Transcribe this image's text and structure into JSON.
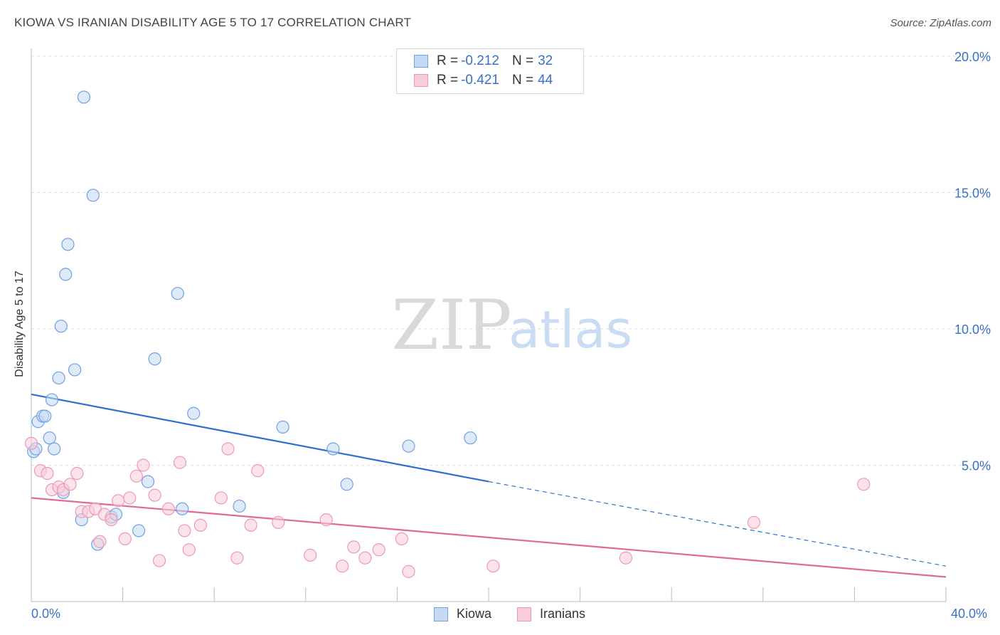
{
  "title": "KIOWA VS IRANIAN DISABILITY AGE 5 TO 17 CORRELATION CHART",
  "source": "Source: ZipAtlas.com",
  "watermark": {
    "zip": "ZIP",
    "atlas": "atlas"
  },
  "legend": {
    "series1": {
      "r_label": "R = ",
      "r_value": "-0.212",
      "n_label": "N = ",
      "n_value": "32"
    },
    "series2": {
      "r_label": "R = ",
      "r_value": "-0.421",
      "n_label": "N = ",
      "n_value": "44"
    }
  },
  "bottom_legend": {
    "kiowa": "Kiowa",
    "iranians": "Iranians"
  },
  "axis": {
    "x_min_label": "0.0%",
    "x_max_label": "40.0%"
  },
  "colors": {
    "kiowa": "#6fa1e3",
    "kiowa_fill": "#c5d9f4",
    "kiowa_line": "#2d6fcf",
    "iranians": "#ee99b4",
    "iranians_fill": "#f9ccd9",
    "iranians_line": "#e0699a"
  },
  "chart_data": {
    "type": "scatter",
    "title": "KIOWA VS IRANIAN DISABILITY AGE 5 TO 17 CORRELATION CHART",
    "xlabel": "",
    "ylabel": "Disability Age 5 to 17",
    "xlim": [
      0,
      40
    ],
    "ylim": [
      0,
      20
    ],
    "y_ticks": [
      {
        "value": 5,
        "label": "5.0%"
      },
      {
        "value": 10,
        "label": "10.0%"
      },
      {
        "value": 15,
        "label": "15.0%"
      },
      {
        "value": 20,
        "label": "20.0%"
      }
    ],
    "grid": "horizontal dashed",
    "legend_position": "top-center",
    "series": [
      {
        "name": "Kiowa",
        "r": -0.212,
        "n": 32,
        "trend": {
          "x": [
            0,
            20
          ],
          "y": [
            7.6,
            4.4
          ],
          "dashed_extension": {
            "x": [
              20,
              40
            ],
            "y": [
              4.4,
              1.3
            ]
          }
        },
        "points": [
          {
            "x": 0.1,
            "y": 5.5
          },
          {
            "x": 0.3,
            "y": 6.6
          },
          {
            "x": 0.5,
            "y": 6.8
          },
          {
            "x": 0.6,
            "y": 6.8
          },
          {
            "x": 0.8,
            "y": 6.0
          },
          {
            "x": 0.9,
            "y": 7.4
          },
          {
            "x": 1.0,
            "y": 5.6
          },
          {
            "x": 1.2,
            "y": 8.2
          },
          {
            "x": 1.3,
            "y": 10.1
          },
          {
            "x": 1.5,
            "y": 12.0
          },
          {
            "x": 1.6,
            "y": 13.1
          },
          {
            "x": 1.9,
            "y": 8.5
          },
          {
            "x": 2.3,
            "y": 18.5
          },
          {
            "x": 2.7,
            "y": 14.9
          },
          {
            "x": 1.4,
            "y": 4.0
          },
          {
            "x": 2.2,
            "y": 3.0
          },
          {
            "x": 2.9,
            "y": 2.1
          },
          {
            "x": 3.5,
            "y": 3.1
          },
          {
            "x": 3.7,
            "y": 3.2
          },
          {
            "x": 4.7,
            "y": 2.6
          },
          {
            "x": 5.1,
            "y": 4.4
          },
          {
            "x": 5.4,
            "y": 8.9
          },
          {
            "x": 6.4,
            "y": 11.3
          },
          {
            "x": 6.6,
            "y": 3.4
          },
          {
            "x": 7.1,
            "y": 6.9
          },
          {
            "x": 9.1,
            "y": 3.5
          },
          {
            "x": 11.0,
            "y": 6.4
          },
          {
            "x": 13.2,
            "y": 5.6
          },
          {
            "x": 13.8,
            "y": 4.3
          },
          {
            "x": 16.5,
            "y": 5.7
          },
          {
            "x": 19.2,
            "y": 6.0
          },
          {
            "x": 0.2,
            "y": 5.6
          }
        ]
      },
      {
        "name": "Iranians",
        "r": -0.421,
        "n": 44,
        "trend": {
          "x": [
            0,
            40
          ],
          "y": [
            3.8,
            0.9
          ]
        },
        "points": [
          {
            "x": 0.0,
            "y": 5.8
          },
          {
            "x": 0.4,
            "y": 4.8
          },
          {
            "x": 0.7,
            "y": 4.7
          },
          {
            "x": 0.9,
            "y": 4.1
          },
          {
            "x": 1.2,
            "y": 4.2
          },
          {
            "x": 1.4,
            "y": 4.1
          },
          {
            "x": 1.7,
            "y": 4.3
          },
          {
            "x": 2.0,
            "y": 4.7
          },
          {
            "x": 2.2,
            "y": 3.3
          },
          {
            "x": 2.5,
            "y": 3.3
          },
          {
            "x": 2.8,
            "y": 3.4
          },
          {
            "x": 3.0,
            "y": 2.2
          },
          {
            "x": 3.2,
            "y": 3.2
          },
          {
            "x": 3.5,
            "y": 3.0
          },
          {
            "x": 3.8,
            "y": 3.7
          },
          {
            "x": 4.1,
            "y": 2.3
          },
          {
            "x": 4.3,
            "y": 3.8
          },
          {
            "x": 4.6,
            "y": 4.6
          },
          {
            "x": 4.9,
            "y": 5.0
          },
          {
            "x": 5.4,
            "y": 3.9
          },
          {
            "x": 5.6,
            "y": 1.5
          },
          {
            "x": 6.0,
            "y": 3.4
          },
          {
            "x": 6.5,
            "y": 5.1
          },
          {
            "x": 6.7,
            "y": 2.6
          },
          {
            "x": 6.9,
            "y": 1.9
          },
          {
            "x": 7.4,
            "y": 2.8
          },
          {
            "x": 8.3,
            "y": 3.8
          },
          {
            "x": 8.6,
            "y": 5.6
          },
          {
            "x": 9.0,
            "y": 1.6
          },
          {
            "x": 9.6,
            "y": 2.8
          },
          {
            "x": 9.9,
            "y": 4.8
          },
          {
            "x": 10.8,
            "y": 2.9
          },
          {
            "x": 12.2,
            "y": 1.7
          },
          {
            "x": 12.9,
            "y": 3.0
          },
          {
            "x": 13.6,
            "y": 1.3
          },
          {
            "x": 14.1,
            "y": 2.0
          },
          {
            "x": 14.6,
            "y": 1.6
          },
          {
            "x": 15.2,
            "y": 1.9
          },
          {
            "x": 16.2,
            "y": 2.3
          },
          {
            "x": 16.5,
            "y": 1.1
          },
          {
            "x": 20.2,
            "y": 1.3
          },
          {
            "x": 26.0,
            "y": 1.6
          },
          {
            "x": 31.6,
            "y": 2.9
          },
          {
            "x": 36.4,
            "y": 4.3
          }
        ]
      }
    ]
  }
}
